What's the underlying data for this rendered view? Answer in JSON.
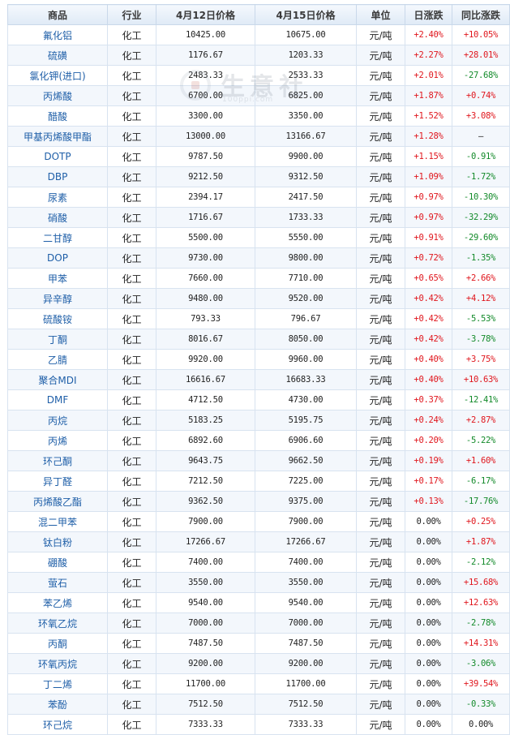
{
  "table": {
    "headers": [
      "商品",
      "行业",
      "4月12日价格",
      "4月15日价格",
      "单位",
      "日涨跌",
      "同比涨跌"
    ],
    "rows": [
      [
        "氟化铝",
        "化工",
        "10425.00",
        "10675.00",
        "元/吨",
        "+2.40%",
        "+10.05%"
      ],
      [
        "硫磺",
        "化工",
        "1176.67",
        "1203.33",
        "元/吨",
        "+2.27%",
        "+28.01%"
      ],
      [
        "氯化钾(进口)",
        "化工",
        "2483.33",
        "2533.33",
        "元/吨",
        "+2.01%",
        "-27.68%"
      ],
      [
        "丙烯酸",
        "化工",
        "6700.00",
        "6825.00",
        "元/吨",
        "+1.87%",
        "+0.74%"
      ],
      [
        "醋酸",
        "化工",
        "3300.00",
        "3350.00",
        "元/吨",
        "+1.52%",
        "+3.08%"
      ],
      [
        "甲基丙烯酸甲酯",
        "化工",
        "13000.00",
        "13166.67",
        "元/吨",
        "+1.28%",
        "—"
      ],
      [
        "DOTP",
        "化工",
        "9787.50",
        "9900.00",
        "元/吨",
        "+1.15%",
        "-0.91%"
      ],
      [
        "DBP",
        "化工",
        "9212.50",
        "9312.50",
        "元/吨",
        "+1.09%",
        "-1.72%"
      ],
      [
        "尿素",
        "化工",
        "2394.17",
        "2417.50",
        "元/吨",
        "+0.97%",
        "-10.30%"
      ],
      [
        "硝酸",
        "化工",
        "1716.67",
        "1733.33",
        "元/吨",
        "+0.97%",
        "-32.29%"
      ],
      [
        "二甘醇",
        "化工",
        "5500.00",
        "5550.00",
        "元/吨",
        "+0.91%",
        "-29.60%"
      ],
      [
        "DOP",
        "化工",
        "9730.00",
        "9800.00",
        "元/吨",
        "+0.72%",
        "-1.35%"
      ],
      [
        "甲苯",
        "化工",
        "7660.00",
        "7710.00",
        "元/吨",
        "+0.65%",
        "+2.66%"
      ],
      [
        "异辛醇",
        "化工",
        "9480.00",
        "9520.00",
        "元/吨",
        "+0.42%",
        "+4.12%"
      ],
      [
        "硫酸铵",
        "化工",
        "793.33",
        "796.67",
        "元/吨",
        "+0.42%",
        "-5.53%"
      ],
      [
        "丁酮",
        "化工",
        "8016.67",
        "8050.00",
        "元/吨",
        "+0.42%",
        "-3.78%"
      ],
      [
        "乙腈",
        "化工",
        "9920.00",
        "9960.00",
        "元/吨",
        "+0.40%",
        "+3.75%"
      ],
      [
        "聚合MDI",
        "化工",
        "16616.67",
        "16683.33",
        "元/吨",
        "+0.40%",
        "+10.63%"
      ],
      [
        "DMF",
        "化工",
        "4712.50",
        "4730.00",
        "元/吨",
        "+0.37%",
        "-12.41%"
      ],
      [
        "丙烷",
        "化工",
        "5183.25",
        "5195.75",
        "元/吨",
        "+0.24%",
        "+2.87%"
      ],
      [
        "丙烯",
        "化工",
        "6892.60",
        "6906.60",
        "元/吨",
        "+0.20%",
        "-5.22%"
      ],
      [
        "环己酮",
        "化工",
        "9643.75",
        "9662.50",
        "元/吨",
        "+0.19%",
        "+1.60%"
      ],
      [
        "异丁醛",
        "化工",
        "7212.50",
        "7225.00",
        "元/吨",
        "+0.17%",
        "-6.17%"
      ],
      [
        "丙烯酸乙酯",
        "化工",
        "9362.50",
        "9375.00",
        "元/吨",
        "+0.13%",
        "-17.76%"
      ],
      [
        "混二甲苯",
        "化工",
        "7900.00",
        "7900.00",
        "元/吨",
        "0.00%",
        "+0.25%"
      ],
      [
        "钛白粉",
        "化工",
        "17266.67",
        "17266.67",
        "元/吨",
        "0.00%",
        "+1.87%"
      ],
      [
        "硼酸",
        "化工",
        "7400.00",
        "7400.00",
        "元/吨",
        "0.00%",
        "-2.12%"
      ],
      [
        "萤石",
        "化工",
        "3550.00",
        "3550.00",
        "元/吨",
        "0.00%",
        "+15.68%"
      ],
      [
        "苯乙烯",
        "化工",
        "9540.00",
        "9540.00",
        "元/吨",
        "0.00%",
        "+12.63%"
      ],
      [
        "环氧乙烷",
        "化工",
        "7000.00",
        "7000.00",
        "元/吨",
        "0.00%",
        "-2.78%"
      ],
      [
        "丙酮",
        "化工",
        "7487.50",
        "7487.50",
        "元/吨",
        "0.00%",
        "+14.31%"
      ],
      [
        "环氧丙烷",
        "化工",
        "9200.00",
        "9200.00",
        "元/吨",
        "0.00%",
        "-3.06%"
      ],
      [
        "丁二烯",
        "化工",
        "11700.00",
        "11700.00",
        "元/吨",
        "0.00%",
        "+39.54%"
      ],
      [
        "苯酚",
        "化工",
        "7512.50",
        "7512.50",
        "元/吨",
        "0.00%",
        "-0.33%"
      ],
      [
        "环己烷",
        "化工",
        "7333.33",
        "7333.33",
        "元/吨",
        "0.00%",
        "0.00%"
      ]
    ]
  },
  "watermark": {
    "text": "生意社",
    "sub": "100ppi.com",
    "logo_icon": "sheng-yi-she-logo-icon"
  },
  "colors": {
    "up": "#e0161d",
    "down": "#138a2a",
    "link": "#1f5fa8",
    "header_bg": "#dfeaf6",
    "border": "#c9d8ea"
  }
}
